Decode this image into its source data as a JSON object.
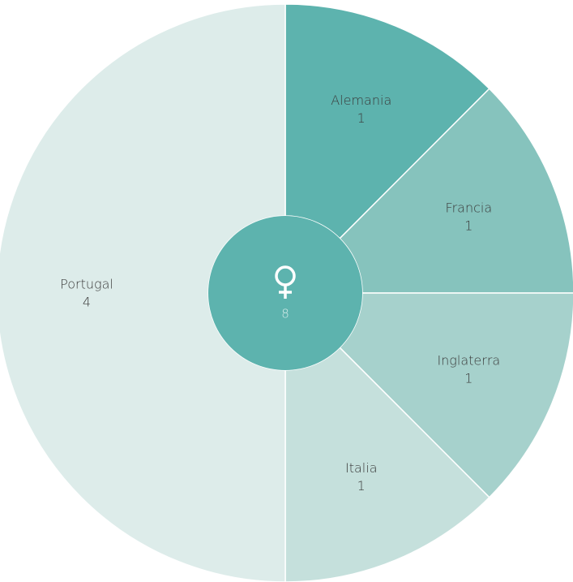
{
  "chart_data": {
    "type": "donut",
    "categories": [
      "Alemania",
      "Francia",
      "Inglaterra",
      "Italia",
      "Portugal"
    ],
    "values": [
      1,
      1,
      1,
      1,
      4
    ],
    "colors": [
      "#5db3ae",
      "#86c3bd",
      "#a6d1cc",
      "#c5e0dc",
      "#ddecea"
    ],
    "total": 8,
    "center_color": "#5db3ae"
  }
}
